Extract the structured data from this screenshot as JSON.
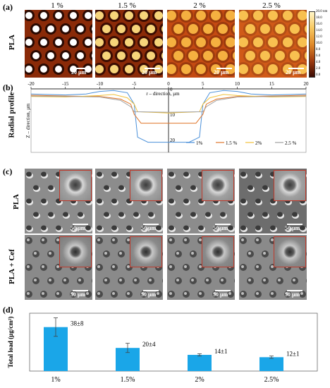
{
  "panel_a": {
    "letter": "(a)",
    "row_label": "PLA",
    "columns": [
      "1 %",
      "1.5 %",
      "2 %",
      "2.5 %"
    ],
    "scale_bar": "20 µm",
    "colorbar_ticks": [
      "20.0 nm",
      "18.0",
      "16.0",
      "14.0",
      "12.0",
      "10.0",
      "8.0",
      "6.0",
      "4.0",
      "2.0",
      "0.0"
    ]
  },
  "panel_b": {
    "letter": "(b)",
    "row_label": "Radial profile",
    "chart_data": {
      "type": "line",
      "xlabel": "r – direction, µm",
      "ylabel": "Z – direction, µm",
      "xlim": [
        -20,
        20
      ],
      "ylim": [
        0,
        25
      ],
      "x_ticks": [
        "-20",
        "-15",
        "-10",
        "-5",
        "0",
        "5",
        "10",
        "15",
        "20"
      ],
      "y_ticks": [
        "0",
        "10",
        "20"
      ],
      "legend": "bottom-right",
      "series": [
        {
          "name": "1%",
          "color": "#4a90d9",
          "points": [
            [
              -20,
              2
            ],
            [
              -15,
              2.4
            ],
            [
              -12,
              2
            ],
            [
              -10,
              1
            ],
            [
              -8,
              0.6
            ],
            [
              -6,
              1.5
            ],
            [
              -5,
              6
            ],
            [
              -4.5,
              19
            ],
            [
              -3,
              21
            ],
            [
              0,
              21
            ],
            [
              3,
              21
            ],
            [
              4.5,
              19
            ],
            [
              5,
              6
            ],
            [
              6,
              1.5
            ],
            [
              8,
              0.6
            ],
            [
              10,
              1
            ],
            [
              12,
              2
            ],
            [
              15,
              2.4
            ],
            [
              20,
              2
            ]
          ]
        },
        {
          "name": "1.5 %",
          "color": "#e0762b",
          "points": [
            [
              -20,
              2.5
            ],
            [
              -15,
              2.8
            ],
            [
              -10,
              3
            ],
            [
              -7,
              4
            ],
            [
              -5.5,
              6
            ],
            [
              -5,
              10
            ],
            [
              -4,
              13.5
            ],
            [
              0,
              13.5
            ],
            [
              4,
              13.5
            ],
            [
              5,
              10
            ],
            [
              5.5,
              6
            ],
            [
              7,
              4
            ],
            [
              10,
              3
            ],
            [
              15,
              2.8
            ],
            [
              20,
              2.5
            ]
          ]
        },
        {
          "name": "2%",
          "color": "#f2c23a",
          "points": [
            [
              -20,
              3
            ],
            [
              -15,
              3.2
            ],
            [
              -10,
              2.6
            ],
            [
              -8,
              2.2
            ],
            [
              -6,
              3.5
            ],
            [
              -5,
              6
            ],
            [
              -4.5,
              9
            ],
            [
              0,
              9.5
            ],
            [
              4.5,
              9
            ],
            [
              5,
              6
            ],
            [
              6,
              3.5
            ],
            [
              8,
              2.2
            ],
            [
              10,
              2.6
            ],
            [
              15,
              3.2
            ],
            [
              20,
              3
            ]
          ]
        },
        {
          "name": "2.5 %",
          "color": "#a0a0a0",
          "points": [
            [
              -20,
              2.8
            ],
            [
              -15,
              3
            ],
            [
              -10,
              3.2
            ],
            [
              -7,
              4.5
            ],
            [
              -5.5,
              7
            ],
            [
              -5,
              9
            ],
            [
              0,
              9.2
            ],
            [
              5,
              9
            ],
            [
              5.5,
              7
            ],
            [
              7,
              4.5
            ],
            [
              10,
              3.2
            ],
            [
              15,
              3
            ],
            [
              20,
              2.8
            ]
          ]
        }
      ]
    }
  },
  "panel_c": {
    "letter": "(c)",
    "row_labels": [
      "PLA",
      "PLA + Cef"
    ],
    "scale_bar": "50 µm"
  },
  "panel_d": {
    "letter": "(d)",
    "chart_data": {
      "type": "bar",
      "ylabel": "Total load (µg/cm²)",
      "categories": [
        "1%",
        "1.5%",
        "2%",
        "2.5%"
      ],
      "values": [
        38,
        20,
        14,
        12
      ],
      "errors": [
        8,
        4,
        1,
        1
      ],
      "data_labels": [
        "38±8",
        "20±4",
        "14±1",
        "12±1"
      ],
      "ylim": [
        0,
        50
      ],
      "bar_color": "#1aa6e8"
    }
  }
}
